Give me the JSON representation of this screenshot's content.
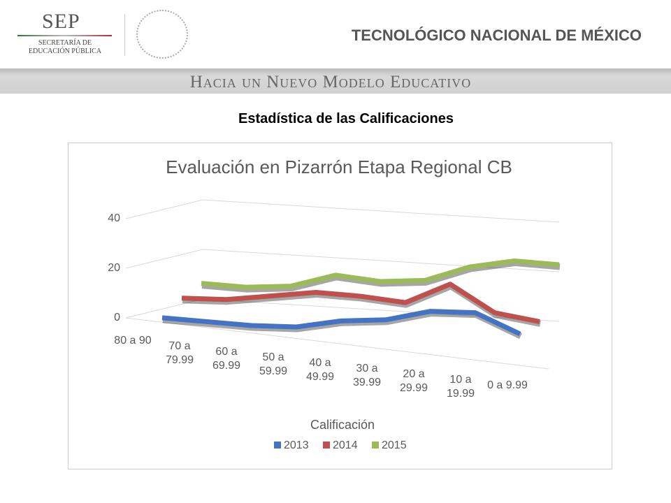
{
  "header": {
    "sep": "SEP",
    "sep_subtitle": "SECRETARÍA DE EDUCACIÓN PÚBLICA",
    "institution": "TECNOLÓGICO NACIONAL DE MÉXICO",
    "banner": "Hacia un Nuevo Modelo Educativo"
  },
  "heading": "Estadística de las Calificaciones",
  "chart_data": {
    "type": "line",
    "title": "Evaluación en Pizarrón Etapa Regional CB",
    "x_label": "Calificación",
    "categories": [
      "80 a 90",
      "70 a 79.99",
      "60 a 69.99",
      "50 a 59.99",
      "40 a 49.99",
      "30 a 39.99",
      "20 a 29.99",
      "10 a 19.99",
      "0 a 9.99"
    ],
    "series": [
      {
        "name": "2013",
        "color": "#4472c4",
        "values": [
          2,
          1,
          0,
          0,
          3,
          4,
          8,
          8,
          0
        ]
      },
      {
        "name": "2014",
        "color": "#c0504d",
        "values": [
          6,
          6,
          8,
          10,
          9,
          7,
          15,
          4,
          1
        ]
      },
      {
        "name": "2015",
        "color": "#9bbb59",
        "values": [
          8,
          7,
          8,
          13,
          11,
          12,
          18,
          21,
          20
        ]
      }
    ],
    "ylim": [
      0,
      40
    ],
    "yticks": [
      0,
      20,
      40
    ],
    "grid": true,
    "legend": "bottom"
  }
}
